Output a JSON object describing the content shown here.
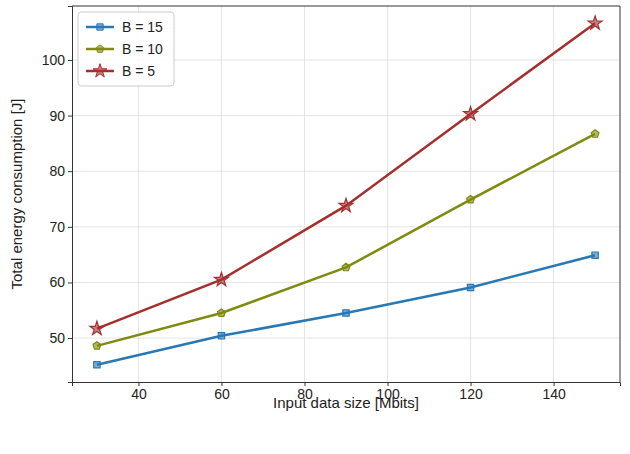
{
  "chart_data": {
    "type": "line",
    "x_label": "Input data size [Mbits]",
    "y_label": "Total energy consumption [J]",
    "x": [
      30,
      60,
      90,
      120,
      150
    ],
    "series": [
      {
        "name": "B = 15",
        "color": "#2878b5",
        "marker": "square",
        "values": [
          45.2,
          50.4,
          54.5,
          59.1,
          64.9
        ]
      },
      {
        "name": "B = 10",
        "color": "#808a0f",
        "marker": "pentagon",
        "values": [
          48.6,
          54.5,
          62.7,
          74.9,
          86.7
        ]
      },
      {
        "name": "B = 5",
        "color": "#a3302e",
        "marker": "star",
        "values": [
          51.7,
          60.5,
          73.8,
          90.3,
          106.6
        ]
      }
    ],
    "xlim": [
      24,
      156
    ],
    "xticks": [
      40,
      60,
      80,
      100,
      120,
      140
    ],
    "ylim": [
      42.1,
      109.7
    ],
    "yticks": [
      50,
      60,
      70,
      80,
      90,
      100
    ],
    "grid": true,
    "legend": "upper left"
  }
}
